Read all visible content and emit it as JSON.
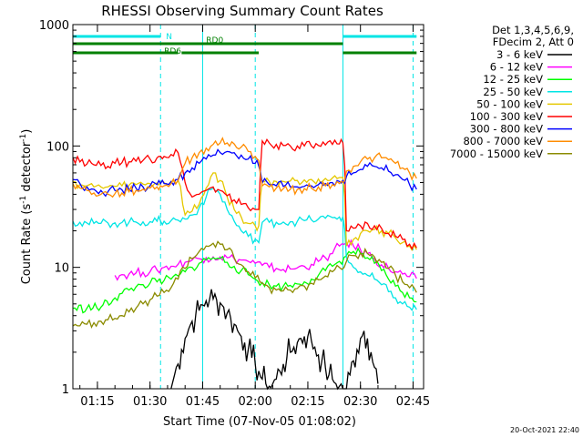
{
  "chart_data": {
    "type": "line",
    "title": "RHESSI Observing Summary Count Rates",
    "xlabel": "Start Time (07-Nov-05 01:08:02)",
    "ylabel_main": "Count Rate (s",
    "ylabel_sup1": "-1",
    "ylabel_mid": " detector",
    "ylabel_sup2": "-1",
    "ylabel_end": ")",
    "yscale": "log",
    "ylim": [
      1,
      1000
    ],
    "xlim_minutes": [
      0,
      100
    ],
    "x_ticks": [
      {
        "label": "01:15",
        "minute": 7
      },
      {
        "label": "01:30",
        "minute": 22
      },
      {
        "label": "01:45",
        "minute": 37
      },
      {
        "label": "02:00",
        "minute": 52
      },
      {
        "label": "02:15",
        "minute": 67
      },
      {
        "label": "02:30",
        "minute": 82
      },
      {
        "label": "02:45",
        "minute": 97
      }
    ],
    "y_ticks": [
      {
        "label": "1",
        "value": 1
      },
      {
        "label": "10",
        "value": 10
      },
      {
        "label": "100",
        "value": 100
      },
      {
        "label": "1000",
        "value": 1000
      }
    ],
    "legend_header": [
      "Det 1,3,4,5,6,9,",
      "FDecim 2, Att 0"
    ],
    "flags": [
      {
        "label": "N",
        "color": "#00e5e5",
        "segments": [
          [
            0,
            25
          ],
          [
            77,
            98
          ]
        ]
      },
      {
        "label": "RD0",
        "color": "#008000",
        "segments": [
          [
            0,
            53
          ],
          [
            53,
            77
          ]
        ]
      },
      {
        "label": "RD6",
        "color": "#008000",
        "segments": [
          [
            0,
            30
          ],
          [
            31,
            53
          ],
          [
            77,
            98
          ]
        ]
      }
    ],
    "night_boundaries_minutes": [
      0,
      25,
      37,
      52,
      77,
      97
    ],
    "series": [
      {
        "name": "3 - 6 keV",
        "color": "#000000",
        "x": [
          28,
          29,
          30,
          31,
          32,
          33,
          34,
          35,
          36,
          37,
          38,
          39,
          40,
          41,
          42,
          43,
          44,
          45,
          46,
          47,
          48,
          49,
          50,
          51,
          52,
          53,
          54,
          55,
          56,
          57,
          58,
          59,
          60,
          61,
          62,
          63,
          64,
          65,
          66,
          67,
          68,
          69,
          70,
          71,
          72,
          73,
          74,
          75,
          76,
          77,
          78,
          79,
          80,
          81,
          82,
          83,
          84,
          85,
          86,
          87
        ],
        "y": [
          1,
          1.3,
          1.6,
          2.1,
          2.6,
          3.1,
          3.6,
          4,
          4.4,
          4.9,
          5.3,
          5.5,
          5.5,
          5.4,
          5.1,
          4.7,
          4.2,
          3.8,
          3.4,
          3,
          2.7,
          2.4,
          2.1,
          1.8,
          1.6,
          1.4,
          1.2,
          1.1,
          1.05,
          1.1,
          1.2,
          1.4,
          1.6,
          1.8,
          2,
          2.2,
          2.4,
          2.6,
          2.7,
          2.7,
          2.5,
          2.2,
          1.9,
          1.7,
          1.5,
          1.3,
          1.2,
          1.1,
          1.05,
          1,
          1,
          1.3,
          1.7,
          2.1,
          2.6,
          3,
          2.6,
          2,
          1.5,
          1.1
        ]
      },
      {
        "name": "6 - 12 keV",
        "color": "#ff00ff",
        "x": [
          12,
          14,
          16,
          18,
          20,
          22,
          24,
          26,
          28,
          30,
          32,
          34,
          36,
          38,
          40,
          42,
          44,
          46,
          48,
          50,
          52,
          54,
          56,
          58,
          60,
          62,
          64,
          66,
          68,
          70,
          72,
          74,
          76,
          78,
          80,
          82,
          84,
          86,
          88,
          90,
          92,
          94,
          96,
          98
        ],
        "y": [
          8.6,
          8.7,
          8.8,
          9,
          9.1,
          9.2,
          9.5,
          10,
          10.2,
          10.6,
          11,
          11.5,
          11.8,
          12,
          12.2,
          12.2,
          12,
          11.8,
          11.5,
          11.2,
          10.8,
          10.4,
          10,
          9.8,
          9.6,
          9.7,
          9.9,
          10.2,
          10.6,
          11.2,
          12,
          13,
          15,
          16,
          15,
          14,
          13,
          11.8,
          10.5,
          9.8,
          9.2,
          8.8,
          8.4,
          8.1
        ]
      },
      {
        "name": "12 - 25 keV",
        "color": "#00ff00",
        "x": [
          0,
          4,
          8,
          12,
          14,
          16,
          18,
          20,
          22,
          24,
          26,
          28,
          30,
          32,
          34,
          36,
          38,
          40,
          42,
          44,
          46,
          48,
          50,
          52,
          54,
          56,
          58,
          60,
          62,
          64,
          66,
          68,
          70,
          72,
          74,
          76,
          78,
          80,
          82,
          84,
          86,
          88,
          90,
          92,
          94,
          96,
          98
        ],
        "y": [
          4.6,
          4.6,
          4.7,
          5.6,
          6.1,
          6.5,
          6.9,
          7.2,
          7.4,
          7.6,
          7.8,
          8,
          8.5,
          9.2,
          10,
          10.8,
          11.5,
          12,
          11.8,
          11,
          10.2,
          9.4,
          8.7,
          8,
          7.5,
          7.2,
          7,
          7,
          7.1,
          7.3,
          7.6,
          8,
          8.6,
          9.4,
          10.2,
          11.2,
          12.5,
          13.5,
          13,
          12,
          10.8,
          9.4,
          8,
          7,
          6.2,
          5.6,
          5.2
        ]
      },
      {
        "name": "25 - 50 keV",
        "color": "#00e5e5",
        "x": [
          0,
          2,
          4,
          6,
          8,
          10,
          12,
          14,
          16,
          18,
          20,
          22,
          24,
          25,
          26,
          28,
          30,
          32,
          34,
          36,
          38,
          40,
          42,
          44,
          46,
          48,
          50,
          52,
          53,
          54,
          56,
          58,
          60,
          62,
          64,
          66,
          68,
          70,
          72,
          74,
          76,
          77,
          78,
          80,
          82,
          84,
          86,
          88,
          90,
          92,
          94,
          96,
          98
        ],
        "y": [
          24,
          23.5,
          23.2,
          23,
          23,
          23.2,
          23.3,
          23.4,
          23.5,
          23.6,
          23.7,
          23.8,
          24,
          24,
          24,
          24.3,
          24.5,
          25,
          27,
          31,
          38,
          45,
          40,
          30,
          24,
          20,
          18,
          17,
          16,
          23.5,
          23.5,
          23.5,
          23.6,
          23.8,
          24,
          24.3,
          24.6,
          25,
          25.4,
          25.7,
          26,
          26,
          12,
          10,
          9.2,
          8.6,
          8,
          7.2,
          6.3,
          5.6,
          5,
          4.7,
          4.5
        ]
      },
      {
        "name": "50 - 100 keV",
        "color": "#e5c800",
        "x": [
          0,
          2,
          4,
          6,
          8,
          10,
          12,
          14,
          16,
          18,
          20,
          22,
          24,
          25,
          26,
          28,
          30,
          32,
          34,
          36,
          38,
          40,
          42,
          44,
          46,
          48,
          50,
          52,
          53,
          54,
          56,
          58,
          60,
          62,
          64,
          66,
          68,
          70,
          72,
          74,
          76,
          77,
          78,
          80,
          82,
          84,
          86,
          88,
          90,
          92,
          94,
          96,
          98
        ],
        "y": [
          51,
          48,
          47,
          46,
          46,
          46,
          46.5,
          47,
          47.5,
          48,
          48.5,
          49,
          49.5,
          50,
          50,
          51,
          52,
          27,
          29,
          33,
          45,
          60,
          52,
          38,
          30,
          26,
          23,
          22,
          22,
          51,
          51,
          51,
          51,
          51.5,
          52,
          52.5,
          53,
          53.5,
          54,
          54.5,
          55,
          55,
          15,
          17,
          19,
          20,
          20.5,
          20,
          19,
          17.5,
          16,
          15,
          14
        ]
      },
      {
        "name": "100 - 300 keV",
        "color": "#ff0000",
        "x": [
          0,
          2,
          4,
          6,
          8,
          10,
          12,
          14,
          16,
          18,
          20,
          22,
          24,
          25,
          26,
          28,
          30,
          32,
          34,
          36,
          38,
          40,
          42,
          44,
          46,
          48,
          50,
          52,
          53,
          54,
          56,
          58,
          60,
          62,
          64,
          66,
          68,
          70,
          72,
          74,
          76,
          77,
          78,
          80,
          82,
          84,
          86,
          88,
          90,
          92,
          94,
          96,
          98
        ],
        "y": [
          80,
          74,
          71,
          70,
          69,
          68,
          72,
          73,
          74,
          75,
          76,
          78,
          80,
          82,
          82,
          85,
          88,
          50,
          38,
          40,
          43,
          46,
          43,
          39,
          36,
          33,
          31,
          30,
          30,
          110,
          106,
          103,
          101,
          100,
          100,
          100,
          100,
          101,
          102,
          103,
          104,
          106,
          20,
          21,
          22,
          23,
          22,
          21,
          19,
          18,
          17,
          15.5,
          14.5
        ]
      },
      {
        "name": "300 - 800 keV",
        "color": "#0000ff",
        "x": [
          0,
          2,
          4,
          6,
          8,
          10,
          12,
          14,
          16,
          18,
          20,
          22,
          24,
          25,
          26,
          28,
          30,
          32,
          34,
          36,
          38,
          40,
          42,
          44,
          46,
          48,
          50,
          52,
          53,
          54,
          56,
          58,
          60,
          62,
          64,
          66,
          68,
          70,
          72,
          74,
          76,
          77,
          78,
          80,
          82,
          84,
          86,
          88,
          90,
          92,
          94,
          96,
          98
        ],
        "y": [
          53,
          49,
          46,
          44,
          43,
          42,
          43,
          43.5,
          44,
          45,
          46,
          47,
          48,
          49,
          49,
          51,
          53,
          60,
          66,
          72,
          78,
          84,
          88,
          90,
          88,
          84,
          78,
          72,
          68,
          50,
          48,
          47,
          46.5,
          46,
          46,
          46.5,
          47,
          48,
          49,
          50,
          51,
          52,
          56,
          60,
          64,
          68,
          68,
          66,
          62,
          58,
          53,
          48,
          44
        ]
      },
      {
        "name": "800 - 7000 keV",
        "color": "#ff8c00",
        "x": [
          0,
          2,
          4,
          6,
          8,
          10,
          12,
          14,
          16,
          18,
          20,
          22,
          24,
          25,
          26,
          28,
          30,
          32,
          34,
          36,
          38,
          40,
          42,
          44,
          46,
          48,
          50,
          52,
          53,
          54,
          56,
          58,
          60,
          62,
          64,
          66,
          68,
          70,
          72,
          74,
          76,
          77,
          78,
          80,
          82,
          84,
          86,
          88,
          90,
          92,
          94,
          96,
          98
        ],
        "y": [
          49,
          45,
          43,
          41,
          40,
          40,
          40.5,
          41,
          42,
          43,
          44,
          45,
          46,
          47,
          47,
          49,
          52,
          72,
          80,
          88,
          96,
          103,
          106,
          106,
          104,
          98,
          90,
          82,
          76,
          47,
          46,
          45,
          44.5,
          44,
          44,
          44.5,
          45,
          46,
          47,
          48,
          49,
          50,
          62,
          68,
          74,
          78,
          80,
          80,
          77,
          72,
          66,
          60,
          54
        ]
      },
      {
        "name": "7000 - 15000 keV",
        "color": "#8b8b00",
        "x": [
          0,
          2,
          4,
          6,
          8,
          10,
          12,
          14,
          16,
          18,
          20,
          22,
          24,
          26,
          28,
          30,
          32,
          34,
          36,
          38,
          40,
          42,
          44,
          46,
          48,
          50,
          52,
          54,
          56,
          58,
          60,
          62,
          64,
          66,
          68,
          70,
          72,
          74,
          76,
          78,
          80,
          82,
          84,
          86,
          88,
          90,
          92,
          94,
          96,
          98
        ],
        "y": [
          3.3,
          3.3,
          3.4,
          3.5,
          3.6,
          3.7,
          3.8,
          4,
          4.3,
          4.6,
          5,
          5.4,
          5.8,
          6.2,
          6.8,
          8,
          9.8,
          11.8,
          13.5,
          15,
          15.8,
          15.5,
          14,
          12,
          10.5,
          9.2,
          8.2,
          7.4,
          6.8,
          6.5,
          6.4,
          6.5,
          6.7,
          7,
          7.4,
          7.9,
          8.5,
          9.2,
          10,
          11.2,
          12.5,
          13.2,
          13,
          12.2,
          11,
          9.8,
          8.6,
          7.6,
          6.8,
          6.2
        ]
      }
    ],
    "grid": false,
    "legend_placement": "right",
    "footer_stamp": "20-Oct-2021 22:40"
  }
}
